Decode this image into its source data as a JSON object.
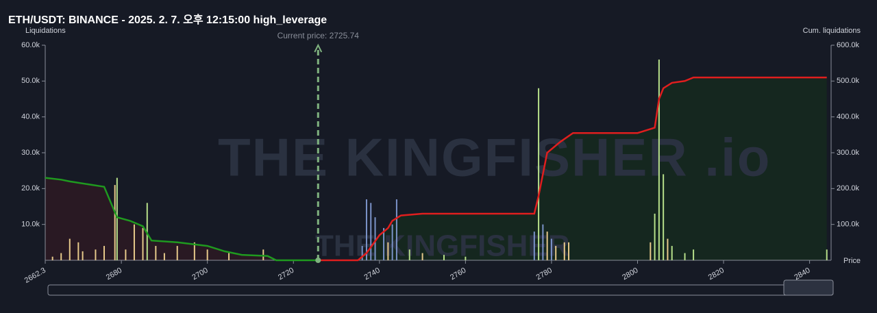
{
  "chart_data": {
    "type": "bar",
    "title": "ETH/USDT: BINANCE - 2025. 2. 7. 오후 12:15:00 high_leverage",
    "y_label": "Liquidations",
    "y2_label": "Cum. liquidations",
    "x_label": "Price",
    "watermark": "THE KINGFISHER .io",
    "watermark_small": "THE KINGFISHER",
    "annotation": {
      "text": "Current price: 2725.74",
      "x": 2725.74,
      "color": "#7fb27f"
    },
    "xlim": [
      2662.3,
      2845
    ],
    "xticks": [
      2662.3,
      2680,
      2700,
      2720,
      2740,
      2760,
      2780,
      2800,
      2820,
      2840
    ],
    "ylim": [
      0,
      60000
    ],
    "yticks": [
      {
        "value": 10000,
        "label": "10.0k"
      },
      {
        "value": 20000,
        "label": "20.0k"
      },
      {
        "value": 30000,
        "label": "30.0k"
      },
      {
        "value": 40000,
        "label": "40.0k"
      },
      {
        "value": 50000,
        "label": "50.0k"
      },
      {
        "value": 60000,
        "label": "60.0k"
      }
    ],
    "y2lim": [
      0,
      600000
    ],
    "y2ticks": [
      {
        "value": 100000,
        "label": "100.0k"
      },
      {
        "value": 200000,
        "label": "200.0k"
      },
      {
        "value": 300000,
        "label": "300.0k"
      },
      {
        "value": 400000,
        "label": "400.0k"
      },
      {
        "value": 500000,
        "label": "500.0k"
      },
      {
        "value": 600000,
        "label": "600.0k"
      }
    ],
    "bars": {
      "x": [
        2664,
        2666,
        2668,
        2670,
        2671,
        2674,
        2676,
        2678.5,
        2679,
        2681,
        2683,
        2685,
        2686,
        2688,
        2690,
        2693,
        2697,
        2700,
        2705,
        2713,
        2736,
        2737,
        2738,
        2739,
        2741,
        2742,
        2743,
        2744,
        2747,
        2750,
        2755,
        2760,
        2776,
        2777,
        2778,
        2779,
        2780,
        2781,
        2783,
        2784,
        2803,
        2804,
        2805,
        2806,
        2807,
        2808,
        2811,
        2813,
        2844
      ],
      "values": [
        1000,
        2000,
        6000,
        5000,
        2500,
        3000,
        4000,
        21000,
        23000,
        3000,
        10000,
        9000,
        16000,
        4000,
        2000,
        4000,
        5000,
        3000,
        2000,
        3000,
        4000,
        17000,
        16000,
        12000,
        9000,
        5000,
        10000,
        17000,
        3000,
        2000,
        1500,
        1000,
        8000,
        48000,
        10000,
        8000,
        6000,
        4000,
        5000,
        5000,
        5000,
        13000,
        56000,
        24000,
        6000,
        4000,
        2000,
        3000,
        3000
      ],
      "colors": [
        "#e6c98a",
        "#e6c98a",
        "#e6c98a",
        "#e6c98a",
        "#e6c98a",
        "#e6c98a",
        "#e6c98a",
        "#e6c98a",
        "#b7e08a",
        "#e6c98a",
        "#e6c98a",
        "#e6c98a",
        "#b7e08a",
        "#e6c98a",
        "#e6c98a",
        "#e6c98a",
        "#e6c98a",
        "#e6c98a",
        "#e6c98a",
        "#e6c98a",
        "#7b93c9",
        "#7b93c9",
        "#7b93c9",
        "#7b93c9",
        "#7b93c9",
        "#e6c98a",
        "#7b93c9",
        "#7b93c9",
        "#b7e08a",
        "#e6c98a",
        "#b7e08a",
        "#b7e08a",
        "#7b93c9",
        "#b7e08a",
        "#7b93c9",
        "#e6c98a",
        "#7b93c9",
        "#e6c98a",
        "#e6c98a",
        "#e6c98a",
        "#e6c98a",
        "#b7e08a",
        "#b7e08a",
        "#b7e08a",
        "#e6c98a",
        "#b7e08a",
        "#b7e08a",
        "#b7e08a",
        "#b7e08a"
      ]
    },
    "cum_lines": [
      {
        "color": "#1f9a1f",
        "fill": "#2b1a24",
        "axis": "y2",
        "x": [
          2662.3,
          2666,
          2668,
          2676,
          2679,
          2682,
          2685,
          2687,
          2693,
          2700,
          2704,
          2708,
          2714,
          2716,
          2725.74
        ],
        "values": [
          230000,
          225000,
          220000,
          205000,
          120000,
          110000,
          95000,
          55000,
          50000,
          40000,
          25000,
          15000,
          12000,
          0,
          0
        ]
      },
      {
        "color": "#e01e1e",
        "fill": "#15291f",
        "axis": "y2",
        "x": [
          2725.74,
          2735,
          2737,
          2740,
          2742,
          2743,
          2745,
          2750,
          2776,
          2777,
          2779,
          2782,
          2785,
          2800,
          2804,
          2805,
          2806,
          2808,
          2811,
          2813,
          2844
        ],
        "values": [
          0,
          0,
          20000,
          70000,
          90000,
          110000,
          125000,
          130000,
          130000,
          180000,
          300000,
          330000,
          355000,
          355000,
          370000,
          450000,
          480000,
          495000,
          500000,
          510000,
          510000
        ]
      }
    ]
  }
}
